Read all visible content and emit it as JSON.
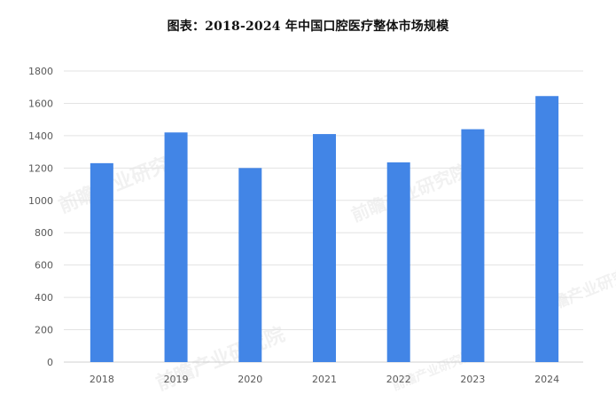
{
  "chart_data": {
    "type": "bar",
    "title": "图表：2018-2024 年中国口腔医疗整体市场规模",
    "xlabel": "",
    "ylabel": "",
    "categories": [
      "2018",
      "2019",
      "2020",
      "2021",
      "2022",
      "2023",
      "2024"
    ],
    "values": [
      1230,
      1420,
      1200,
      1410,
      1235,
      1440,
      1645
    ],
    "ylim": [
      0,
      1800
    ],
    "yticks": [
      "0",
      "200",
      "400",
      "600",
      "800",
      "1000",
      "1200",
      "1400",
      "1600",
      "1800"
    ],
    "grid": true,
    "legend": "none",
    "bar_color": "#4285e6"
  },
  "watermark": {
    "text": "前瞻产业研究院",
    "color": "#cccccc"
  }
}
